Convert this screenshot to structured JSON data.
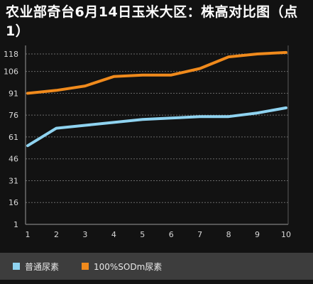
{
  "chart_data": {
    "type": "line",
    "title": "农业部奇台6月14日玉米大区：株高对比图（点1）",
    "x": [
      1,
      2,
      3,
      4,
      5,
      6,
      7,
      8,
      9,
      10
    ],
    "y_ticks": [
      1,
      16,
      31,
      46,
      61,
      76,
      91,
      106,
      118
    ],
    "ylim": [
      1,
      118
    ],
    "xlim": [
      1,
      10
    ],
    "grid": true,
    "legend_position": "bottom",
    "series": [
      {
        "name": "普通尿素",
        "color": "#8fd3f0",
        "values": [
          55,
          67,
          69,
          71,
          73,
          74,
          75,
          75,
          77.5,
          81
        ]
      },
      {
        "name": "100%SODm尿素",
        "color": "#f08a1c",
        "values": [
          91,
          93,
          96,
          102.5,
          103.5,
          103.5,
          108,
          116,
          118,
          119
        ]
      }
    ]
  }
}
